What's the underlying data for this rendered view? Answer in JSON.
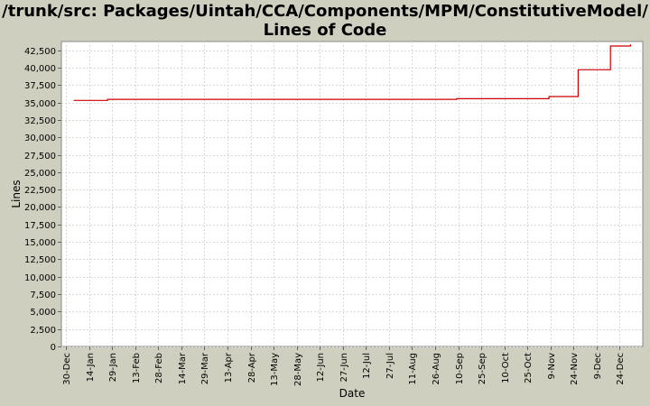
{
  "chart_data": {
    "type": "line",
    "title_line1": "/trunk/src: Packages/Uintah/CCA/Components/MPM/ConstitutiveModel/",
    "title_line2": "Lines of Code",
    "xlabel": "Date",
    "ylabel": "Lines",
    "ylim": [
      0,
      43750
    ],
    "y_ticks": [
      0,
      2500,
      5000,
      7500,
      10000,
      12500,
      15000,
      17500,
      20000,
      22500,
      25000,
      27500,
      30000,
      32500,
      35000,
      37500,
      40000,
      42500
    ],
    "x_tick_labels": [
      "30-Dec",
      "14-Jan",
      "29-Jan",
      "13-Feb",
      "28-Feb",
      "14-Mar",
      "29-Mar",
      "13-Apr",
      "28-Apr",
      "13-May",
      "28-May",
      "12-Jun",
      "27-Jun",
      "12-Jul",
      "27-Jul",
      "11-Aug",
      "26-Aug",
      "10-Sep",
      "25-Sep",
      "10-Oct",
      "25-Oct",
      "9-Nov",
      "24-Nov",
      "9-Dec",
      "24-Dec"
    ],
    "x_tick_days": [
      0,
      15,
      30,
      45,
      60,
      75,
      90,
      105,
      120,
      135,
      150,
      165,
      180,
      195,
      210,
      225,
      240,
      255,
      270,
      285,
      300,
      315,
      330,
      345,
      360
    ],
    "xlim_days": [
      -3,
      375
    ],
    "grid": true,
    "line_color": "#cc0000",
    "series": [
      {
        "name": "",
        "points": [
          [
            5,
            35300
          ],
          [
            27,
            35300
          ],
          [
            27,
            35450
          ],
          [
            254,
            35450
          ],
          [
            254,
            35550
          ],
          [
            314,
            35550
          ],
          [
            314,
            35850
          ],
          [
            333,
            35850
          ],
          [
            333,
            39700
          ],
          [
            354,
            39700
          ],
          [
            354,
            43100
          ],
          [
            367,
            43100
          ],
          [
            367,
            43350
          ]
        ]
      }
    ]
  }
}
